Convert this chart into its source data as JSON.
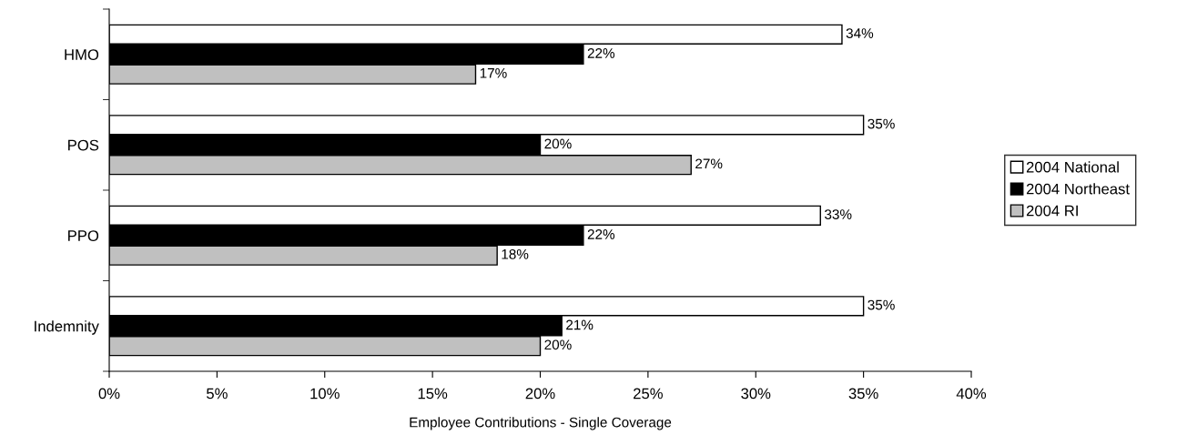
{
  "chart_data": {
    "type": "bar",
    "orientation": "horizontal",
    "xlabel": "Employee Contributions - Single Coverage",
    "categories": [
      "HMO",
      "POS",
      "PPO",
      "Indemnity"
    ],
    "series": [
      {
        "name": "2004 National",
        "color": "#ffffff",
        "values": [
          34,
          35,
          33,
          35
        ],
        "value_labels": [
          "34%",
          "35%",
          "33%",
          "35%"
        ]
      },
      {
        "name": "2004 Northeast",
        "color": "#000000",
        "values": [
          22,
          20,
          22,
          21
        ],
        "value_labels": [
          "22%",
          "20%",
          "22%",
          "21%"
        ]
      },
      {
        "name": "2004 RI",
        "color": "#c0c0c0",
        "values": [
          17,
          27,
          18,
          20
        ],
        "value_labels": [
          "17%",
          "27%",
          "18%",
          "20%"
        ]
      }
    ],
    "xlim": [
      0,
      40
    ],
    "xticks": [
      {
        "value": 0,
        "label": "0%"
      },
      {
        "value": 5,
        "label": "5%"
      },
      {
        "value": 10,
        "label": "10%"
      },
      {
        "value": 15,
        "label": "15%"
      },
      {
        "value": 20,
        "label": "20%"
      },
      {
        "value": 25,
        "label": "25%"
      },
      {
        "value": 30,
        "label": "30%"
      },
      {
        "value": 35,
        "label": "35%"
      },
      {
        "value": 40,
        "label": "40%"
      }
    ],
    "grid": false,
    "legend": "right"
  }
}
